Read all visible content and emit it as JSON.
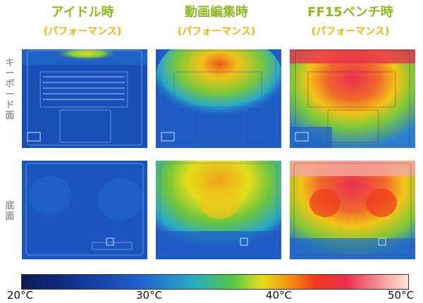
{
  "columns": [
    {
      "title": "アイドル時",
      "subtitle": "(パフォーマンス)"
    },
    {
      "title": "動画編集時",
      "subtitle": "(パフォーマンス)"
    },
    {
      "title": "FF15ベンチ時",
      "subtitle": "(パフォーマンス)"
    }
  ],
  "rows": [
    {
      "label": "キーボード面"
    },
    {
      "label": "底面"
    }
  ],
  "scale": {
    "ticks": [
      "20°C",
      "30°C",
      "40°C",
      "50°C"
    ]
  },
  "colors": {
    "title": "#8dbb1f",
    "subtitle": "#f1b500",
    "row_label": "#9a9a9a",
    "cool": "#1a4fb8",
    "hot": "#ee3a1e"
  }
}
